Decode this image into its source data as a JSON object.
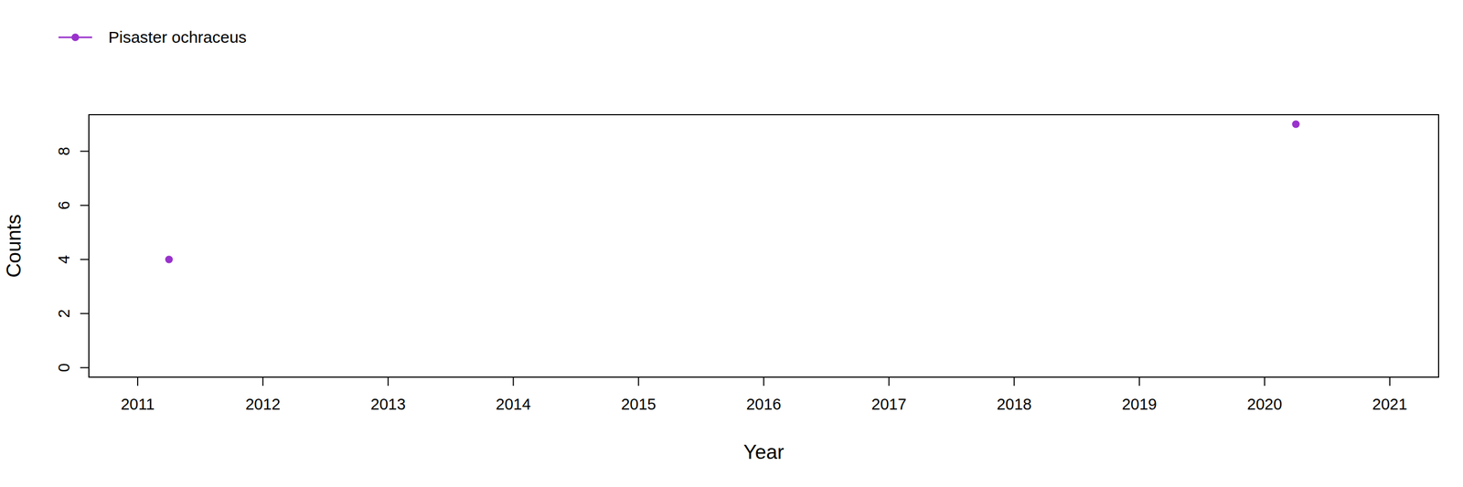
{
  "chart_data": {
    "type": "scatter",
    "x_label": "Year",
    "y_label": "Counts",
    "series": [
      {
        "name": "Pisaster ochraceus",
        "color": "#9932cc",
        "marker": "circle",
        "x": [
          2011.25,
          2020.25
        ],
        "values": [
          4,
          9
        ]
      }
    ],
    "xlim": [
      2010.61,
      2021.39
    ],
    "xticks": [
      2011,
      2012,
      2013,
      2014,
      2015,
      2016,
      2017,
      2018,
      2019,
      2020,
      2021
    ],
    "ylim": [
      -0.35,
      9.35
    ],
    "yticks": [
      0,
      2,
      4,
      6,
      8
    ],
    "legend": "top-left",
    "grid": false
  }
}
